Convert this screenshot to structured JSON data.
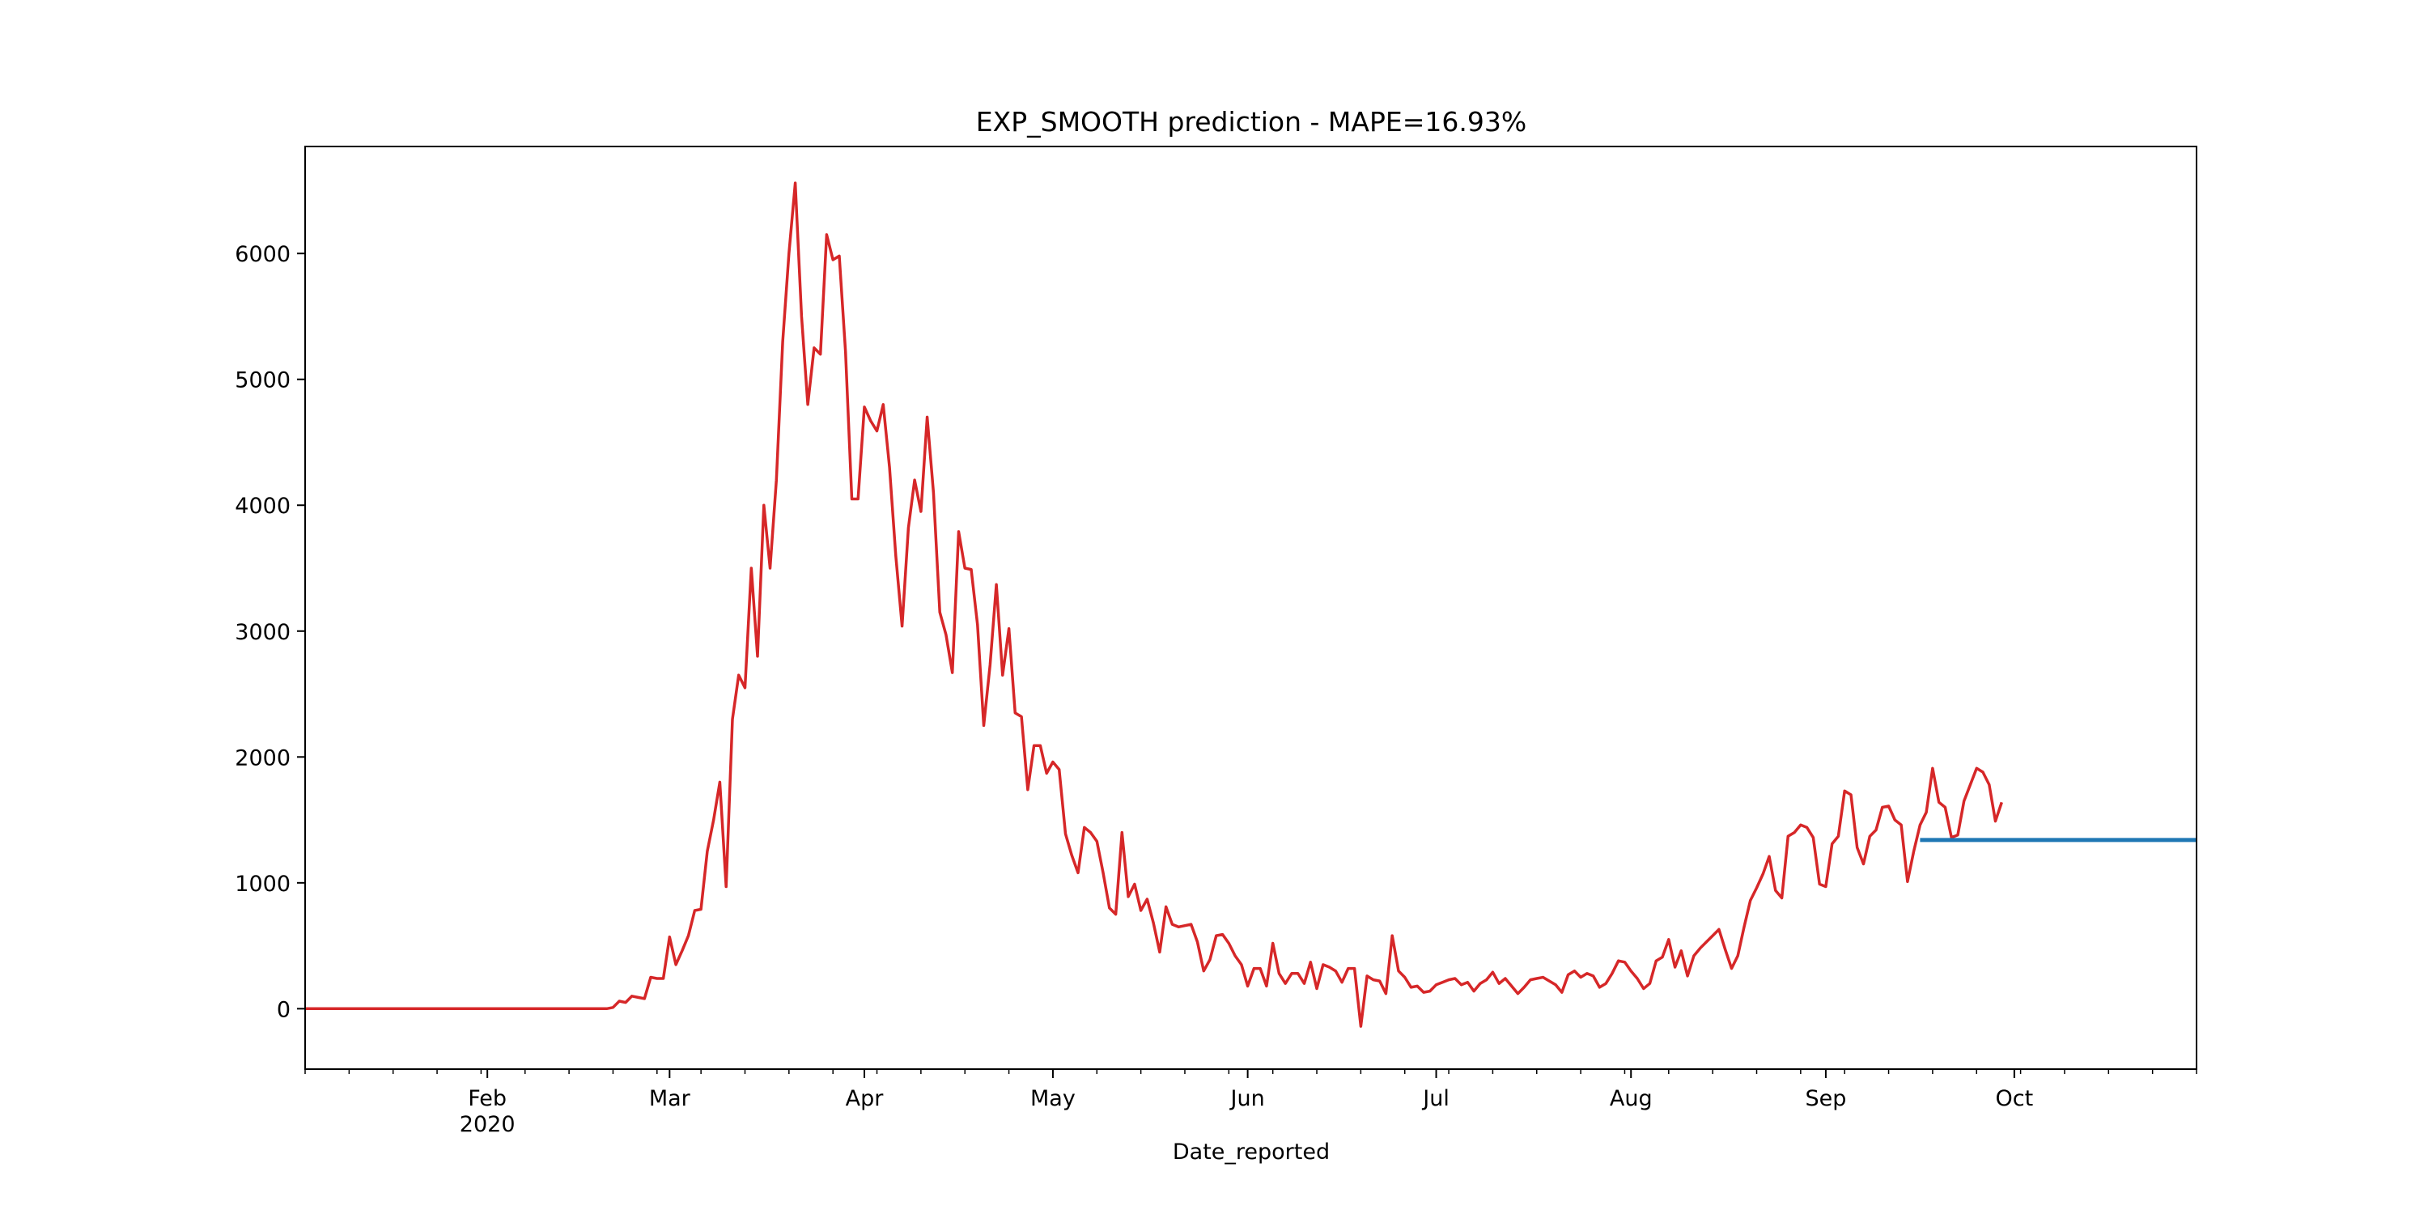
{
  "chart_data": {
    "type": "line",
    "title": "EXP_SMOOTH prediction - MAPE=16.93%",
    "xlabel": "Date_reported",
    "ylabel": "",
    "x_range": [
      "2020-01-03",
      "2020-10-30"
    ],
    "ylim": [
      -480,
      6850
    ],
    "grid": false,
    "legend": "none",
    "y_ticks": [
      0,
      1000,
      2000,
      3000,
      4000,
      5000,
      6000
    ],
    "x_ticks": [
      {
        "date": "2020-02-01",
        "label": "Feb",
        "sublabel": "2020"
      },
      {
        "date": "2020-03-01",
        "label": "Mar",
        "sublabel": ""
      },
      {
        "date": "2020-04-01",
        "label": "Apr",
        "sublabel": ""
      },
      {
        "date": "2020-05-01",
        "label": "May",
        "sublabel": ""
      },
      {
        "date": "2020-06-01",
        "label": "Jun",
        "sublabel": ""
      },
      {
        "date": "2020-07-01",
        "label": "Jul",
        "sublabel": ""
      },
      {
        "date": "2020-08-01",
        "label": "Aug",
        "sublabel": ""
      },
      {
        "date": "2020-09-01",
        "label": "Sep",
        "sublabel": ""
      },
      {
        "date": "2020-10-01",
        "label": "Oct",
        "sublabel": ""
      }
    ],
    "series": [
      {
        "color": "#d62728",
        "points": [
          [
            "2020-01-03",
            0
          ],
          [
            "2020-02-20",
            0
          ],
          [
            "2020-02-21",
            10
          ],
          [
            "2020-02-22",
            60
          ],
          [
            "2020-02-23",
            50
          ],
          [
            "2020-02-24",
            100
          ],
          [
            "2020-02-25",
            90
          ],
          [
            "2020-02-26",
            80
          ],
          [
            "2020-02-27",
            250
          ],
          [
            "2020-02-28",
            240
          ],
          [
            "2020-02-29",
            240
          ],
          [
            "2020-03-01",
            570
          ],
          [
            "2020-03-02",
            350
          ],
          [
            "2020-03-03",
            460
          ],
          [
            "2020-03-04",
            580
          ],
          [
            "2020-03-05",
            780
          ],
          [
            "2020-03-06",
            790
          ],
          [
            "2020-03-07",
            1250
          ],
          [
            "2020-03-08",
            1500
          ],
          [
            "2020-03-09",
            1800
          ],
          [
            "2020-03-10",
            970
          ],
          [
            "2020-03-11",
            2300
          ],
          [
            "2020-03-12",
            2650
          ],
          [
            "2020-03-13",
            2550
          ],
          [
            "2020-03-14",
            3500
          ],
          [
            "2020-03-15",
            2800
          ],
          [
            "2020-03-16",
            4000
          ],
          [
            "2020-03-17",
            3500
          ],
          [
            "2020-03-18",
            4200
          ],
          [
            "2020-03-19",
            5300
          ],
          [
            "2020-03-20",
            6000
          ],
          [
            "2020-03-21",
            6560
          ],
          [
            "2020-03-22",
            5500
          ],
          [
            "2020-03-23",
            4800
          ],
          [
            "2020-03-24",
            5250
          ],
          [
            "2020-03-25",
            5200
          ],
          [
            "2020-03-26",
            6150
          ],
          [
            "2020-03-27",
            5950
          ],
          [
            "2020-03-28",
            5980
          ],
          [
            "2020-03-29",
            5220
          ],
          [
            "2020-03-30",
            4050
          ],
          [
            "2020-03-31",
            4050
          ],
          [
            "2020-04-01",
            4780
          ],
          [
            "2020-04-02",
            4670
          ],
          [
            "2020-04-03",
            4590
          ],
          [
            "2020-04-04",
            4800
          ],
          [
            "2020-04-05",
            4300
          ],
          [
            "2020-04-06",
            3600
          ],
          [
            "2020-04-07",
            3040
          ],
          [
            "2020-04-08",
            3820
          ],
          [
            "2020-04-09",
            4200
          ],
          [
            "2020-04-10",
            3950
          ],
          [
            "2020-04-11",
            4700
          ],
          [
            "2020-04-12",
            4100
          ],
          [
            "2020-04-13",
            3150
          ],
          [
            "2020-04-14",
            2970
          ],
          [
            "2020-04-15",
            2670
          ],
          [
            "2020-04-16",
            3790
          ],
          [
            "2020-04-17",
            3500
          ],
          [
            "2020-04-18",
            3490
          ],
          [
            "2020-04-19",
            3050
          ],
          [
            "2020-04-20",
            2250
          ],
          [
            "2020-04-21",
            2730
          ],
          [
            "2020-04-22",
            3370
          ],
          [
            "2020-04-23",
            2650
          ],
          [
            "2020-04-24",
            3020
          ],
          [
            "2020-04-25",
            2350
          ],
          [
            "2020-04-26",
            2320
          ],
          [
            "2020-04-27",
            1740
          ],
          [
            "2020-04-28",
            2090
          ],
          [
            "2020-04-29",
            2090
          ],
          [
            "2020-04-30",
            1870
          ],
          [
            "2020-05-01",
            1960
          ],
          [
            "2020-05-02",
            1900
          ],
          [
            "2020-05-03",
            1390
          ],
          [
            "2020-05-04",
            1220
          ],
          [
            "2020-05-05",
            1080
          ],
          [
            "2020-05-06",
            1440
          ],
          [
            "2020-05-07",
            1400
          ],
          [
            "2020-05-08",
            1330
          ],
          [
            "2020-05-09",
            1080
          ],
          [
            "2020-05-10",
            800
          ],
          [
            "2020-05-11",
            750
          ],
          [
            "2020-05-12",
            1400
          ],
          [
            "2020-05-13",
            890
          ],
          [
            "2020-05-14",
            990
          ],
          [
            "2020-05-15",
            780
          ],
          [
            "2020-05-16",
            870
          ],
          [
            "2020-05-17",
            680
          ],
          [
            "2020-05-18",
            450
          ],
          [
            "2020-05-19",
            810
          ],
          [
            "2020-05-20",
            670
          ],
          [
            "2020-05-21",
            650
          ],
          [
            "2020-05-22",
            660
          ],
          [
            "2020-05-23",
            670
          ],
          [
            "2020-05-24",
            530
          ],
          [
            "2020-05-25",
            300
          ],
          [
            "2020-05-26",
            390
          ],
          [
            "2020-05-27",
            580
          ],
          [
            "2020-05-28",
            590
          ],
          [
            "2020-05-29",
            520
          ],
          [
            "2020-05-30",
            420
          ],
          [
            "2020-05-31",
            350
          ],
          [
            "2020-06-01",
            180
          ],
          [
            "2020-06-02",
            320
          ],
          [
            "2020-06-03",
            320
          ],
          [
            "2020-06-04",
            180
          ],
          [
            "2020-06-05",
            520
          ],
          [
            "2020-06-06",
            280
          ],
          [
            "2020-06-07",
            200
          ],
          [
            "2020-06-08",
            280
          ],
          [
            "2020-06-09",
            280
          ],
          [
            "2020-06-10",
            200
          ],
          [
            "2020-06-11",
            370
          ],
          [
            "2020-06-12",
            160
          ],
          [
            "2020-06-13",
            350
          ],
          [
            "2020-06-14",
            330
          ],
          [
            "2020-06-15",
            300
          ],
          [
            "2020-06-16",
            210
          ],
          [
            "2020-06-17",
            320
          ],
          [
            "2020-06-18",
            320
          ],
          [
            "2020-06-19",
            -140
          ],
          [
            "2020-06-20",
            260
          ],
          [
            "2020-06-21",
            230
          ],
          [
            "2020-06-22",
            220
          ],
          [
            "2020-06-23",
            120
          ],
          [
            "2020-06-24",
            580
          ],
          [
            "2020-06-25",
            300
          ],
          [
            "2020-06-26",
            250
          ],
          [
            "2020-06-27",
            170
          ],
          [
            "2020-06-28",
            180
          ],
          [
            "2020-06-29",
            130
          ],
          [
            "2020-06-30",
            140
          ],
          [
            "2020-07-01",
            190
          ],
          [
            "2020-07-02",
            210
          ],
          [
            "2020-07-03",
            230
          ],
          [
            "2020-07-04",
            240
          ],
          [
            "2020-07-05",
            190
          ],
          [
            "2020-07-06",
            210
          ],
          [
            "2020-07-07",
            140
          ],
          [
            "2020-07-08",
            200
          ],
          [
            "2020-07-09",
            230
          ],
          [
            "2020-07-10",
            290
          ],
          [
            "2020-07-11",
            200
          ],
          [
            "2020-07-12",
            240
          ],
          [
            "2020-07-13",
            180
          ],
          [
            "2020-07-14",
            120
          ],
          [
            "2020-07-15",
            170
          ],
          [
            "2020-07-16",
            230
          ],
          [
            "2020-07-17",
            240
          ],
          [
            "2020-07-18",
            250
          ],
          [
            "2020-07-19",
            220
          ],
          [
            "2020-07-20",
            190
          ],
          [
            "2020-07-21",
            130
          ],
          [
            "2020-07-22",
            270
          ],
          [
            "2020-07-23",
            300
          ],
          [
            "2020-07-24",
            250
          ],
          [
            "2020-07-25",
            280
          ],
          [
            "2020-07-26",
            260
          ],
          [
            "2020-07-27",
            170
          ],
          [
            "2020-07-28",
            200
          ],
          [
            "2020-07-29",
            280
          ],
          [
            "2020-07-30",
            380
          ],
          [
            "2020-07-31",
            370
          ],
          [
            "2020-08-01",
            300
          ],
          [
            "2020-08-02",
            240
          ],
          [
            "2020-08-03",
            160
          ],
          [
            "2020-08-04",
            200
          ],
          [
            "2020-08-05",
            380
          ],
          [
            "2020-08-06",
            410
          ],
          [
            "2020-08-07",
            550
          ],
          [
            "2020-08-08",
            330
          ],
          [
            "2020-08-09",
            460
          ],
          [
            "2020-08-10",
            260
          ],
          [
            "2020-08-11",
            420
          ],
          [
            "2020-08-12",
            480
          ],
          [
            "2020-08-13",
            530
          ],
          [
            "2020-08-14",
            580
          ],
          [
            "2020-08-15",
            630
          ],
          [
            "2020-08-16",
            470
          ],
          [
            "2020-08-17",
            320
          ],
          [
            "2020-08-18",
            420
          ],
          [
            "2020-08-19",
            650
          ],
          [
            "2020-08-20",
            860
          ],
          [
            "2020-08-21",
            960
          ],
          [
            "2020-08-22",
            1070
          ],
          [
            "2020-08-23",
            1210
          ],
          [
            "2020-08-24",
            940
          ],
          [
            "2020-08-25",
            880
          ],
          [
            "2020-08-26",
            1370
          ],
          [
            "2020-08-27",
            1400
          ],
          [
            "2020-08-28",
            1460
          ],
          [
            "2020-08-29",
            1440
          ],
          [
            "2020-08-30",
            1360
          ],
          [
            "2020-08-31",
            990
          ],
          [
            "2020-09-01",
            970
          ],
          [
            "2020-09-02",
            1310
          ],
          [
            "2020-09-03",
            1370
          ],
          [
            "2020-09-04",
            1730
          ],
          [
            "2020-09-05",
            1700
          ],
          [
            "2020-09-06",
            1280
          ],
          [
            "2020-09-07",
            1150
          ],
          [
            "2020-09-08",
            1370
          ],
          [
            "2020-09-09",
            1420
          ],
          [
            "2020-09-10",
            1600
          ],
          [
            "2020-09-11",
            1610
          ],
          [
            "2020-09-12",
            1500
          ],
          [
            "2020-09-13",
            1460
          ],
          [
            "2020-09-14",
            1010
          ],
          [
            "2020-09-15",
            1250
          ],
          [
            "2020-09-16",
            1460
          ],
          [
            "2020-09-17",
            1560
          ],
          [
            "2020-09-18",
            1910
          ],
          [
            "2020-09-19",
            1640
          ],
          [
            "2020-09-20",
            1600
          ],
          [
            "2020-09-21",
            1360
          ],
          [
            "2020-09-22",
            1380
          ],
          [
            "2020-09-23",
            1650
          ],
          [
            "2020-09-24",
            1780
          ],
          [
            "2020-09-25",
            1910
          ],
          [
            "2020-09-26",
            1880
          ],
          [
            "2020-09-27",
            1780
          ],
          [
            "2020-09-28",
            1490
          ],
          [
            "2020-09-29",
            1640
          ]
        ]
      },
      {
        "color": "#1f77b4",
        "points": [
          [
            "2020-09-16",
            1340
          ],
          [
            "2020-10-30",
            1340
          ]
        ]
      }
    ]
  }
}
